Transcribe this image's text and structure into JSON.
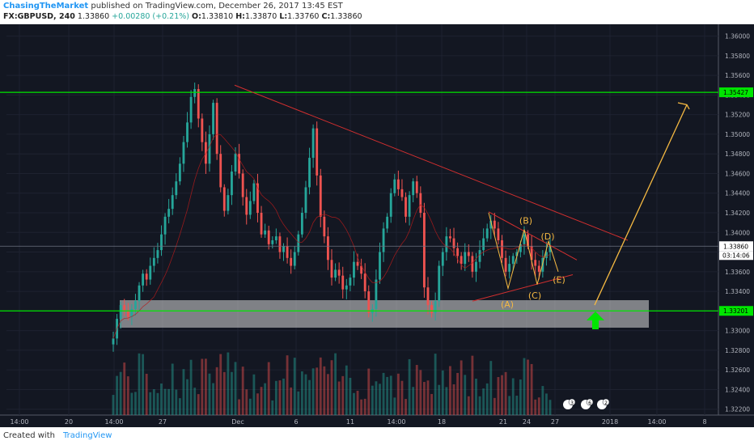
{
  "header": {
    "author": "ChasingTheMarket",
    "published": "published on TradingView.com, December 26, 2017 13:45 EST",
    "symbol": "FX:GBPUSD, 240",
    "last": "1.33860",
    "change": "+0.00280 (+0.21%)",
    "open": "1.33810",
    "high": "1.33870",
    "low": "1.33760",
    "close": "1.33860"
  },
  "footer": {
    "created": "Created with",
    "brand": "TradingView"
  },
  "colors": {
    "background": "#131722",
    "up": "#26a69a",
    "down": "#ef5350",
    "support": "#00e600",
    "trendline": "#d32f2f",
    "wave": "#f5b942"
  },
  "chart_data": {
    "type": "candlestick",
    "symbol": "FX:GBPUSD",
    "interval": "240",
    "ylim": [
      1.3214,
      1.3612
    ],
    "y_ticks": [
      "1.36000",
      "1.35800",
      "1.35600",
      "1.35400",
      "1.35200",
      "1.35000",
      "1.34800",
      "1.34600",
      "1.34400",
      "1.34200",
      "1.34000",
      "1.33800",
      "1.33600",
      "1.33400",
      "1.33200",
      "1.33000",
      "1.32800",
      "1.32600",
      "1.32400",
      "1.32200"
    ],
    "x_ticks": [
      "14:00",
      "20",
      "14:00",
      "27",
      "Dec",
      "6",
      "11",
      "14:00",
      "18",
      "21",
      "24",
      "27",
      "2018",
      "14:00",
      "8"
    ],
    "horizontal_levels": [
      {
        "label": "1.35427",
        "price": 1.35427
      },
      {
        "label": "1.33201",
        "price": 1.33201
      }
    ],
    "current_price": {
      "label": "1.33860",
      "price": 1.3386,
      "countdown": "03:14:06"
    },
    "support_zone": {
      "from": 1.3303,
      "to": 1.3331
    },
    "wave_labels": [
      "(A)",
      "(B)",
      "(C)",
      "(D)",
      "(E)"
    ],
    "event_badges": [
      "3",
      "6",
      "2"
    ],
    "candles_close": [
      1.3292,
      1.3312,
      1.3326,
      1.332,
      1.3314,
      1.3322,
      1.333,
      1.3346,
      1.3358,
      1.3352,
      1.3366,
      1.3374,
      1.3382,
      1.3398,
      1.3416,
      1.3424,
      1.3438,
      1.3452,
      1.347,
      1.3492,
      1.3512,
      1.3538,
      1.3546,
      1.3516,
      1.3492,
      1.347,
      1.35,
      1.3532,
      1.348,
      1.3446,
      1.3422,
      1.3438,
      1.3462,
      1.348,
      1.346,
      1.3436,
      1.3418,
      1.3432,
      1.345,
      1.342,
      1.3398,
      1.3402,
      1.3388,
      1.3392,
      1.3396,
      1.338,
      1.3386,
      1.3374,
      1.3366,
      1.338,
      1.3398,
      1.342,
      1.3446,
      1.3476,
      1.3506,
      1.3458,
      1.3416,
      1.3396,
      1.3372,
      1.3354,
      1.3362,
      1.3356,
      1.3342,
      1.3346,
      1.3354,
      1.337,
      1.3366,
      1.3358,
      1.334,
      1.3318,
      1.3322,
      1.3352,
      1.338,
      1.3404,
      1.3416,
      1.344,
      1.3454,
      1.3444,
      1.3436,
      1.3416,
      1.3438,
      1.3452,
      1.344,
      1.342,
      1.3344,
      1.3326,
      1.3318,
      1.333,
      1.3366,
      1.338,
      1.3396,
      1.3394,
      1.3384,
      1.3376,
      1.3368,
      1.338,
      1.3376,
      1.336,
      1.337,
      1.3382,
      1.3394,
      1.3404,
      1.3412,
      1.3404,
      1.3392,
      1.3374,
      1.336,
      1.3368,
      1.3376,
      1.338,
      1.3388,
      1.3398,
      1.3386,
      1.3372,
      1.3366,
      1.336,
      1.3374,
      1.338,
      1.3386
    ]
  }
}
